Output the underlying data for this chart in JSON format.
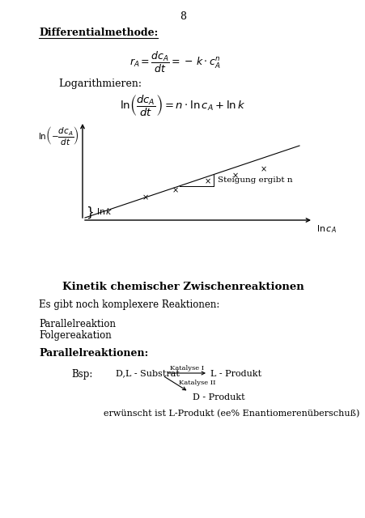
{
  "page_number": "8",
  "bg_color": "#ffffff",
  "text_color": "#000000",
  "title_diff": "Differentialmethode:",
  "label_log": "Logarithmieren:",
  "steigung_label": "Steigung ergibt n",
  "data_points_x": [
    0.28,
    0.42,
    0.57,
    0.7,
    0.83
  ],
  "data_points_y": [
    0.28,
    0.38,
    0.5,
    0.58,
    0.67
  ],
  "section_title": "Kinetik chemischer Zwischenreaktionen",
  "text1": "Es gibt noch komplexere Reaktionen:",
  "text2a": "Parallelreaktion",
  "text2b": "Folgereakation",
  "bold_label": "Parallelreaktionen",
  "bsp_label": "Bsp:",
  "substrate_label": "D,L - Substrat",
  "katalyse1_label": "Katalyse I",
  "product1_label": "L - Produkt",
  "katalyse2_label": "Katalyse II",
  "product2_label": "D - Produkt",
  "erwuenscht": "erwünscht ist L-Produkt (ee% Enantiomerenüberschuß)"
}
